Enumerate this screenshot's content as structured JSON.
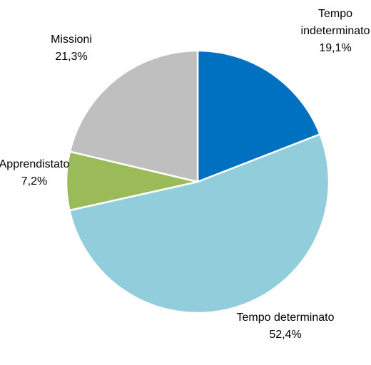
{
  "chart_data": {
    "type": "pie",
    "categories": [
      "Tempo indeterminato",
      "Tempo determinato",
      "Apprendistato",
      "Missioni"
    ],
    "values": [
      19.1,
      52.4,
      7.2,
      21.3
    ],
    "value_labels": [
      "19,1%",
      "52,4%",
      "7,2%",
      "21,3%"
    ],
    "colors": [
      "#0070c0",
      "#92cddc",
      "#9bbb59",
      "#bfbfbf"
    ]
  }
}
